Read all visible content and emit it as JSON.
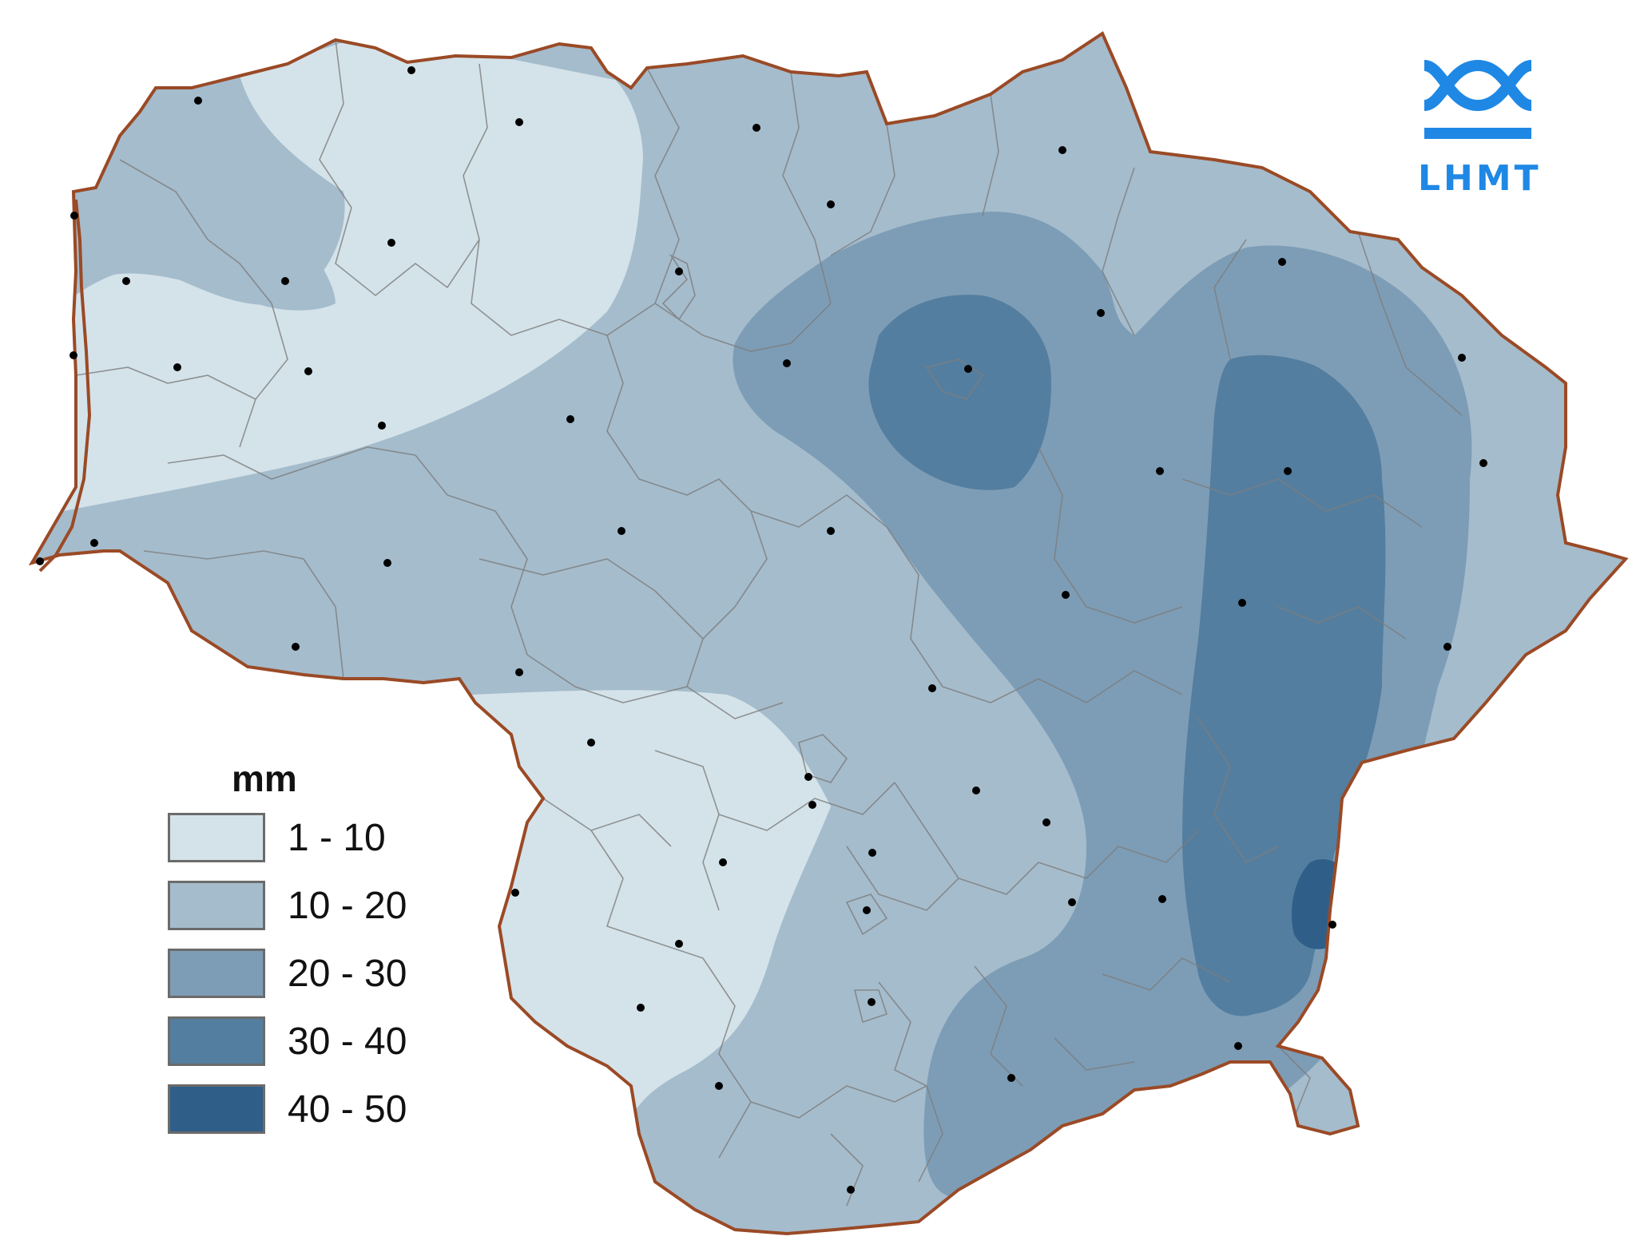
{
  "legend": {
    "title": "mm",
    "items": [
      {
        "label": "1 - 10",
        "color": "#d4e3ea"
      },
      {
        "label": "10 - 20",
        "color": "#a5bccc"
      },
      {
        "label": "20 - 30",
        "color": "#7d9db6"
      },
      {
        "label": "30 - 40",
        "color": "#547e9f"
      },
      {
        "label": "40 - 50",
        "color": "#2f5f88"
      }
    ]
  },
  "logo": {
    "text": "LHMT",
    "color": "#1f88e5"
  },
  "map": {
    "border_color": "#9a4a26",
    "district_line_color": "#7d7d7d",
    "station_marker": "station-dot-icon"
  }
}
